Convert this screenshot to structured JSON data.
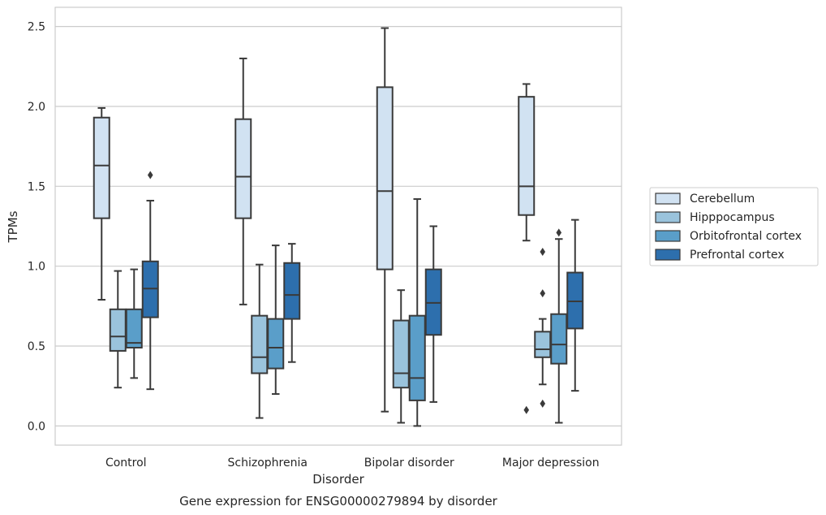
{
  "chart_data": {
    "type": "box",
    "xlabel": "Disorder",
    "ylabel": "TPMs",
    "caption": "Gene expression for ENSG00000279894 by disorder",
    "categories": [
      "Control",
      "Schizophrenia",
      "Bipolar disorder",
      "Major depression"
    ],
    "ylim": [
      -0.12,
      2.62
    ],
    "yticks": [
      0.0,
      0.5,
      1.0,
      1.5,
      2.0,
      2.5
    ],
    "ytick_labels": [
      "0.0",
      "0.5",
      "1.0",
      "1.5",
      "2.0",
      "2.5"
    ],
    "grid": "horizontal",
    "legend_position": "right",
    "series": [
      {
        "name": "Cerebellum",
        "color": "#d1e2f2",
        "boxes": [
          {
            "whisker_low": 0.79,
            "q1": 1.3,
            "median": 1.63,
            "q3": 1.93,
            "whisker_high": 1.99,
            "outliers": []
          },
          {
            "whisker_low": 0.76,
            "q1": 1.3,
            "median": 1.56,
            "q3": 1.92,
            "whisker_high": 2.3,
            "outliers": []
          },
          {
            "whisker_low": 0.09,
            "q1": 0.98,
            "median": 1.47,
            "q3": 2.12,
            "whisker_high": 2.49,
            "outliers": []
          },
          {
            "whisker_low": 1.16,
            "q1": 1.32,
            "median": 1.5,
            "q3": 2.06,
            "whisker_high": 2.14,
            "outliers": [
              0.1
            ]
          }
        ]
      },
      {
        "name": "Hipppocampus",
        "color": "#9ac3dc",
        "boxes": [
          {
            "whisker_low": 0.24,
            "q1": 0.47,
            "median": 0.56,
            "q3": 0.73,
            "whisker_high": 0.97,
            "outliers": []
          },
          {
            "whisker_low": 0.05,
            "q1": 0.33,
            "median": 0.43,
            "q3": 0.69,
            "whisker_high": 1.01,
            "outliers": []
          },
          {
            "whisker_low": 0.02,
            "q1": 0.24,
            "median": 0.33,
            "q3": 0.66,
            "whisker_high": 0.85,
            "outliers": []
          },
          {
            "whisker_low": 0.26,
            "q1": 0.43,
            "median": 0.48,
            "q3": 0.59,
            "whisker_high": 0.67,
            "outliers": [
              0.14,
              0.83,
              1.09
            ]
          }
        ]
      },
      {
        "name": "Orbitofrontal cortex",
        "color": "#5a9ec9",
        "boxes": [
          {
            "whisker_low": 0.3,
            "q1": 0.49,
            "median": 0.52,
            "q3": 0.73,
            "whisker_high": 0.98,
            "outliers": []
          },
          {
            "whisker_low": 0.2,
            "q1": 0.36,
            "median": 0.49,
            "q3": 0.67,
            "whisker_high": 1.13,
            "outliers": []
          },
          {
            "whisker_low": 0.0,
            "q1": 0.16,
            "median": 0.3,
            "q3": 0.69,
            "whisker_high": 1.42,
            "outliers": []
          },
          {
            "whisker_low": 0.02,
            "q1": 0.39,
            "median": 0.51,
            "q3": 0.7,
            "whisker_high": 1.17,
            "outliers": [
              1.21
            ]
          }
        ]
      },
      {
        "name": "Prefrontal cortex",
        "color": "#2d6fad",
        "boxes": [
          {
            "whisker_low": 0.23,
            "q1": 0.68,
            "median": 0.86,
            "q3": 1.03,
            "whisker_high": 1.41,
            "outliers": [
              1.57
            ]
          },
          {
            "whisker_low": 0.4,
            "q1": 0.67,
            "median": 0.82,
            "q3": 1.02,
            "whisker_high": 1.14,
            "outliers": []
          },
          {
            "whisker_low": 0.15,
            "q1": 0.57,
            "median": 0.77,
            "q3": 0.98,
            "whisker_high": 1.25,
            "outliers": []
          },
          {
            "whisker_low": 0.22,
            "q1": 0.61,
            "median": 0.78,
            "q3": 0.96,
            "whisker_high": 1.29,
            "outliers": []
          }
        ]
      }
    ]
  }
}
